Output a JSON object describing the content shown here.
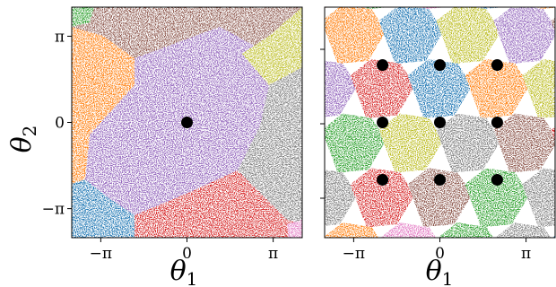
{
  "chart_data": [
    {
      "type": "scatter",
      "title": "",
      "xlabel": "θ",
      "xlabel_sub": "1",
      "ylabel": "θ",
      "ylabel_sub": "2",
      "xlim": [
        -4.2,
        4.2
      ],
      "ylim": [
        -4.2,
        4.2
      ],
      "xticks": [
        {
          "value": -3.14159,
          "label": "−π"
        },
        {
          "value": 0,
          "label": "0"
        },
        {
          "value": 3.14159,
          "label": "π"
        }
      ],
      "yticks": [
        {
          "value": -3.14159,
          "label": "−π"
        },
        {
          "value": 0,
          "label": "0"
        },
        {
          "value": 3.14159,
          "label": "π"
        }
      ],
      "grid": false,
      "legend": "none",
      "region_colors": [
        "#9467bd",
        "#7f7f7f",
        "#d62728",
        "#1f77b4",
        "#ff7f0e",
        "#8c564b",
        "#bcbd22",
        "#2ca02c",
        "#e377c2"
      ],
      "points": [
        {
          "x": 0,
          "y": 0
        }
      ]
    },
    {
      "type": "scatter",
      "title": "",
      "xlabel": "θ",
      "xlabel_sub": "1",
      "ylabel": "",
      "xlim": [
        -4.2,
        4.2
      ],
      "ylim": [
        -4.2,
        4.2
      ],
      "xticks": [
        {
          "value": -3.14159,
          "label": "−π"
        },
        {
          "value": 0,
          "label": "0"
        },
        {
          "value": 3.14159,
          "label": "π"
        }
      ],
      "yticks": [],
      "grid": false,
      "legend": "none",
      "region_colors": [
        "#9467bd",
        "#1f77b4",
        "#8c564b",
        "#ff7f0e",
        "#d62728",
        "#bcbd22",
        "#2ca02c",
        "#7f7f7f",
        "#e377c2"
      ],
      "points": [
        {
          "x": -2.09,
          "y": 2.09
        },
        {
          "x": 0,
          "y": 2.09
        },
        {
          "x": 2.09,
          "y": 2.09
        },
        {
          "x": -2.09,
          "y": 0
        },
        {
          "x": 0,
          "y": 0
        },
        {
          "x": 2.09,
          "y": 0
        },
        {
          "x": -2.09,
          "y": -2.09
        },
        {
          "x": 0,
          "y": -2.09
        },
        {
          "x": 2.09,
          "y": -2.09
        }
      ]
    }
  ]
}
